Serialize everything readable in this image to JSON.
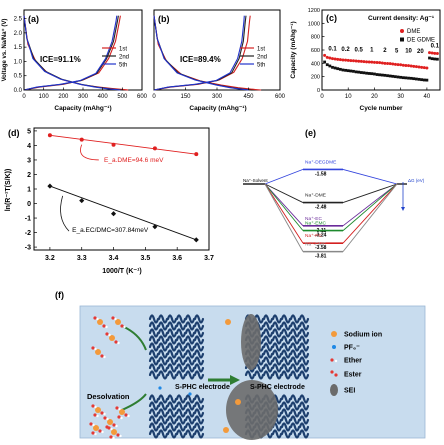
{
  "panels": {
    "a": {
      "label": "(a)",
      "ylabel": "Voltage vs. Na/Na⁺ (V)",
      "xlabel": "Capacity (mAhg⁻¹)",
      "annotation": "ICE=91.1%",
      "legend": [
        "1st",
        "2nd",
        "5th"
      ],
      "xticks": [
        "0",
        "100",
        "200",
        "300",
        "400",
        "500",
        "600"
      ],
      "yticks": [
        "0.0",
        "0.5",
        "1.0",
        "1.5",
        "2.0",
        "2.5"
      ]
    },
    "b": {
      "label": "(b)",
      "xlabel": "Capacity (mAhg⁻¹)",
      "annotation": "ICE=89.4%",
      "legend": [
        "1st",
        "2nd",
        "5th"
      ],
      "xticks": [
        "0",
        "150",
        "300",
        "450",
        "600"
      ]
    },
    "c": {
      "label": "(c)",
      "ylabel": "Capacity (mAhg⁻¹)",
      "xlabel": "Cycle number",
      "title": "Current density: Ag⁻¹",
      "legend": [
        "DME",
        "DE GDME"
      ],
      "rates": [
        "0.1",
        "0.2",
        "0.5",
        "1",
        "2",
        "5",
        "10",
        "20",
        "0.1"
      ],
      "xticks": [
        "0",
        "10",
        "20",
        "30",
        "40"
      ],
      "yticks": [
        "0",
        "200",
        "400",
        "600",
        "800",
        "1000",
        "1200"
      ]
    },
    "d": {
      "label": "(d)",
      "ylabel": "ln(R⁻¹T(S/K))",
      "xlabel": "1000/T (K⁻¹)",
      "ann_top": "E_a.DME=94.6 meV",
      "ann_bottom": "E_a.EC/DMC=307.84meV",
      "xticks": [
        "3.2",
        "3.3",
        "3.4",
        "3.5",
        "3.6",
        "3.7"
      ],
      "yticks": [
        "-3",
        "-2",
        "-1",
        "0",
        "1",
        "2",
        "3",
        "4",
        "5"
      ]
    },
    "e": {
      "label": "(e)",
      "left_label": "Na⁺-Solvent",
      "right_label": "ΔG (eV)",
      "levels": [
        {
          "name": "Na⁺-DEGDME",
          "value": "-1.58",
          "color": "#3344dd"
        },
        {
          "name": "Na⁺-DME",
          "value": "-2.48",
          "color": "#222222"
        },
        {
          "name": "Na⁺-EC",
          "value": "-3.11",
          "color": "#6a2b9a"
        },
        {
          "name": "Na⁺-EMC",
          "value": "-3.24",
          "color": "#1e8a2e"
        },
        {
          "name": "Na⁺-PC",
          "value": "-3.58",
          "color": "#d42020"
        },
        {
          "name": "Na⁺-DMC",
          "value": "-3.81",
          "color": "#888888"
        }
      ]
    },
    "f": {
      "label": "(f)",
      "desolvation": "Desolvation",
      "electrode1": "S-PHC electrode",
      "electrode2": "S-PHC electrode",
      "legend": [
        "Sodium ion",
        "PF₆⁻",
        "Ether",
        "Ester",
        "SEI"
      ]
    }
  },
  "chart_data": [
    {
      "type": "line",
      "panel": "a",
      "xlabel": "Capacity (mAhg⁻¹)",
      "ylabel": "Voltage vs. Na/Na⁺ (V)",
      "xlim": [
        0,
        600
      ],
      "ylim": [
        0,
        2.8
      ],
      "series": [
        {
          "name": "1st",
          "color": "#d42020",
          "discharge": [
            [
              0,
              2.6
            ],
            [
              20,
              1.6
            ],
            [
              60,
              1.0
            ],
            [
              120,
              0.6
            ],
            [
              200,
              0.35
            ],
            [
              300,
              0.18
            ],
            [
              380,
              0.1
            ],
            [
              450,
              0.05
            ],
            [
              530,
              0.0
            ]
          ],
          "charge": [
            [
              0,
              0.0
            ],
            [
              80,
              0.1
            ],
            [
              200,
              0.2
            ],
            [
              300,
              0.35
            ],
            [
              380,
              0.6
            ],
            [
              430,
              1.1
            ],
            [
              465,
              1.7
            ],
            [
              485,
              2.4
            ],
            [
              490,
              2.6
            ]
          ]
        },
        {
          "name": "2nd",
          "color": "#222222",
          "discharge": [
            [
              0,
              2.6
            ],
            [
              15,
              1.8
            ],
            [
              50,
              1.1
            ],
            [
              110,
              0.65
            ],
            [
              190,
              0.38
            ],
            [
              290,
              0.2
            ],
            [
              370,
              0.1
            ],
            [
              440,
              0.04
            ],
            [
              500,
              0.0
            ]
          ],
          "charge": [
            [
              0,
              0.0
            ],
            [
              70,
              0.1
            ],
            [
              190,
              0.2
            ],
            [
              290,
              0.33
            ],
            [
              370,
              0.58
            ],
            [
              420,
              1.1
            ],
            [
              455,
              1.7
            ],
            [
              475,
              2.4
            ],
            [
              480,
              2.6
            ]
          ]
        },
        {
          "name": "5th",
          "color": "#2233cc",
          "discharge": [
            [
              0,
              2.6
            ],
            [
              15,
              1.8
            ],
            [
              45,
              1.1
            ],
            [
              105,
              0.65
            ],
            [
              185,
              0.38
            ],
            [
              285,
              0.2
            ],
            [
              360,
              0.1
            ],
            [
              430,
              0.04
            ],
            [
              490,
              0.0
            ]
          ],
          "charge": [
            [
              0,
              0.0
            ],
            [
              65,
              0.1
            ],
            [
              185,
              0.2
            ],
            [
              285,
              0.33
            ],
            [
              365,
              0.58
            ],
            [
              415,
              1.1
            ],
            [
              448,
              1.7
            ],
            [
              468,
              2.4
            ],
            [
              472,
              2.6
            ]
          ]
        }
      ]
    },
    {
      "type": "line",
      "panel": "b",
      "xlabel": "Capacity (mAhg⁻¹)",
      "xlim": [
        0,
        600
      ],
      "ylim": [
        0,
        2.8
      ],
      "series": [
        {
          "name": "1st",
          "color": "#d42020",
          "discharge": [
            [
              0,
              2.6
            ],
            [
              20,
              1.6
            ],
            [
              60,
              1.0
            ],
            [
              130,
              0.55
            ],
            [
              220,
              0.32
            ],
            [
              320,
              0.17
            ],
            [
              400,
              0.08
            ],
            [
              460,
              0.03
            ],
            [
              510,
              0.0
            ]
          ],
          "charge": [
            [
              0,
              0.0
            ],
            [
              80,
              0.1
            ],
            [
              210,
              0.2
            ],
            [
              310,
              0.35
            ],
            [
              380,
              0.62
            ],
            [
              420,
              1.1
            ],
            [
              445,
              1.7
            ],
            [
              455,
              2.4
            ],
            [
              458,
              2.6
            ]
          ]
        },
        {
          "name": "2nd",
          "color": "#222222",
          "discharge": [
            [
              0,
              2.6
            ],
            [
              15,
              1.8
            ],
            [
              50,
              1.1
            ],
            [
              115,
              0.6
            ],
            [
              200,
              0.35
            ],
            [
              300,
              0.18
            ],
            [
              370,
              0.08
            ],
            [
              420,
              0.03
            ],
            [
              460,
              0.0
            ]
          ],
          "charge": [
            [
              0,
              0.0
            ],
            [
              70,
              0.1
            ],
            [
              200,
              0.2
            ],
            [
              300,
              0.33
            ],
            [
              370,
              0.6
            ],
            [
              405,
              1.1
            ],
            [
              425,
              1.7
            ],
            [
              435,
              2.4
            ],
            [
              438,
              2.6
            ]
          ]
        },
        {
          "name": "5th",
          "color": "#2233cc",
          "discharge": [
            [
              0,
              2.6
            ],
            [
              15,
              1.8
            ],
            [
              48,
              1.1
            ],
            [
              110,
              0.6
            ],
            [
              195,
              0.35
            ],
            [
              295,
              0.18
            ],
            [
              362,
              0.08
            ],
            [
              410,
              0.03
            ],
            [
              450,
              0.0
            ]
          ],
          "charge": [
            [
              0,
              0.0
            ],
            [
              68,
              0.1
            ],
            [
              195,
              0.2
            ],
            [
              295,
              0.33
            ],
            [
              362,
              0.6
            ],
            [
              398,
              1.1
            ],
            [
              418,
              1.7
            ],
            [
              428,
              2.4
            ],
            [
              430,
              2.6
            ]
          ]
        }
      ]
    },
    {
      "type": "scatter",
      "panel": "c",
      "title": "Current density: Ag⁻¹",
      "xlabel": "Cycle number",
      "ylabel": "Capacity (mAhg⁻¹)",
      "xlim": [
        0,
        45
      ],
      "ylim": [
        0,
        1200
      ],
      "series": [
        {
          "name": "DME",
          "color": "#e02020",
          "marker": "circle",
          "x": [
            1,
            2,
            3,
            4,
            5,
            6,
            7,
            8,
            9,
            10,
            11,
            12,
            13,
            14,
            15,
            16,
            17,
            18,
            19,
            20,
            21,
            22,
            23,
            24,
            25,
            26,
            27,
            28,
            29,
            30,
            31,
            32,
            33,
            34,
            35,
            36,
            37,
            38,
            39,
            40,
            41,
            42,
            43,
            44
          ],
          "y": [
            520,
            490,
            480,
            470,
            465,
            460,
            455,
            450,
            448,
            445,
            440,
            438,
            435,
            432,
            430,
            425,
            422,
            420,
            418,
            415,
            412,
            410,
            405,
            400,
            398,
            395,
            390,
            385,
            380,
            378,
            372,
            368,
            365,
            360,
            355,
            350,
            345,
            340,
            335,
            330,
            560,
            555,
            550,
            548
          ]
        },
        {
          "name": "DE GDME",
          "color": "#111111",
          "marker": "square",
          "x": [
            1,
            2,
            3,
            4,
            5,
            6,
            7,
            8,
            9,
            10,
            11,
            12,
            13,
            14,
            15,
            16,
            17,
            18,
            19,
            20,
            21,
            22,
            23,
            24,
            25,
            26,
            27,
            28,
            29,
            30,
            31,
            32,
            33,
            34,
            35,
            36,
            37,
            38,
            39,
            40,
            41,
            42,
            43,
            44
          ],
          "y": [
            420,
            380,
            360,
            340,
            330,
            320,
            310,
            300,
            295,
            290,
            285,
            280,
            272,
            268,
            262,
            258,
            252,
            248,
            245,
            240,
            232,
            228,
            224,
            220,
            215,
            210,
            205,
            200,
            195,
            190,
            185,
            182,
            178,
            175,
            170,
            165,
            160,
            155,
            150,
            148,
            480,
            470,
            465,
            462
          ]
        }
      ]
    },
    {
      "type": "scatter",
      "panel": "d",
      "xlabel": "1000/T (K⁻¹)",
      "ylabel": "ln(R⁻¹T(S/K))",
      "xlim": [
        3.15,
        3.7
      ],
      "ylim": [
        -3.2,
        5.2
      ],
      "series": [
        {
          "name": "DME",
          "color": "#e02020",
          "x": [
            3.2,
            3.3,
            3.4,
            3.53,
            3.66
          ],
          "y": [
            4.7,
            4.4,
            4.05,
            3.8,
            3.4
          ]
        },
        {
          "name": "EC/DMC",
          "color": "#111111",
          "x": [
            3.2,
            3.3,
            3.4,
            3.53,
            3.66
          ],
          "y": [
            1.2,
            0.2,
            -0.7,
            -1.6,
            -2.5
          ]
        }
      ]
    }
  ]
}
